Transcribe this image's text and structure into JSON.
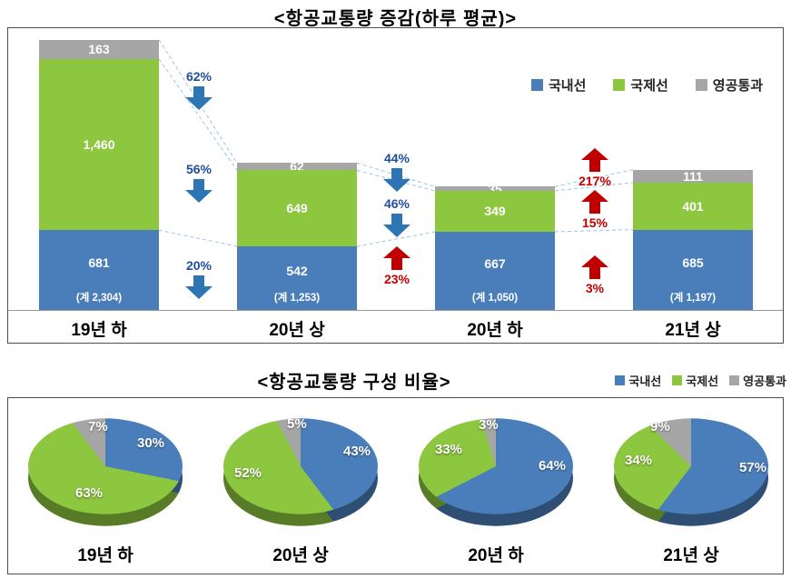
{
  "colors": {
    "domestic": "#4a7ebb",
    "international": "#8dc63f",
    "overflight": "#a6a6a6",
    "decrease_text": "#1f4e9e",
    "decrease_arrow": "#2e75b6",
    "increase": "#c00000",
    "trend_line": "#9dc3e6"
  },
  "chart_data": [
    {
      "type": "bar",
      "stacked": true,
      "title": "<항공교통량 증감(하루 평균)>",
      "categories": [
        "19년 하",
        "20년 상",
        "20년 하",
        "21년 상"
      ],
      "series": [
        {
          "name": "국내선",
          "key": "domestic",
          "values": [
            681,
            542,
            667,
            685
          ],
          "labels": [
            "681",
            "542",
            "667",
            "685"
          ]
        },
        {
          "name": "국제선",
          "key": "international",
          "values": [
            1460,
            649,
            349,
            401
          ],
          "labels": [
            "1,460",
            "649",
            "349",
            "401"
          ]
        },
        {
          "name": "영공통과",
          "key": "overflight",
          "values": [
            163,
            62,
            35,
            111
          ],
          "labels": [
            "163",
            "62",
            "35",
            "111"
          ]
        }
      ],
      "totals": [
        "(계 2,304)",
        "(계 1,253)",
        "(계 1,050)",
        "(계 1,197)"
      ],
      "legend": [
        {
          "label": "국내선",
          "key": "domestic"
        },
        {
          "label": "국제선",
          "key": "international"
        },
        {
          "label": "영공통과",
          "key": "overflight"
        }
      ],
      "legend_position": "top-right",
      "ylim": [
        0,
        2400
      ],
      "grid": false,
      "changes": [
        {
          "between": [
            "19년 하",
            "20년 상"
          ],
          "items": [
            {
              "series": "영공통과",
              "label": "62%",
              "direction": "down"
            },
            {
              "series": "국제선",
              "label": "56%",
              "direction": "down"
            },
            {
              "series": "국내선",
              "label": "20%",
              "direction": "down"
            }
          ]
        },
        {
          "between": [
            "20년 상",
            "20년 하"
          ],
          "items": [
            {
              "series": "영공통과",
              "label": "44%",
              "direction": "down"
            },
            {
              "series": "국제선",
              "label": "46%",
              "direction": "down"
            },
            {
              "series": "국내선",
              "label": "23%",
              "direction": "up"
            }
          ]
        },
        {
          "between": [
            "20년 하",
            "21년 상"
          ],
          "items": [
            {
              "series": "영공통과",
              "label": "217%",
              "direction": "up"
            },
            {
              "series": "국제선",
              "label": "15%",
              "direction": "up"
            },
            {
              "series": "국내선",
              "label": "3%",
              "direction": "up"
            }
          ]
        }
      ]
    },
    {
      "type": "pie",
      "title": "<항공교통량 구성 비율>",
      "legend": [
        {
          "label": "국내선",
          "key": "domestic"
        },
        {
          "label": "국제선",
          "key": "international"
        },
        {
          "label": "영공통과",
          "key": "overflight"
        }
      ],
      "legend_position": "top-right",
      "pies": [
        {
          "category": "19년 하",
          "slices": [
            {
              "name": "국내선",
              "key": "domestic",
              "pct": 30,
              "label": "30%",
              "label_pos": [
                120,
                33
              ]
            },
            {
              "name": "국제선",
              "key": "international",
              "pct": 63,
              "label": "63%",
              "label_pos": [
                52,
                88
              ]
            },
            {
              "name": "영공통과",
              "key": "overflight",
              "pct": 7,
              "label": "7%",
              "label_pos": [
                66,
                15
              ]
            }
          ]
        },
        {
          "category": "20년 상",
          "slices": [
            {
              "name": "국내선",
              "key": "domestic",
              "pct": 43,
              "label": "43%",
              "label_pos": [
                132,
                42
              ]
            },
            {
              "name": "국제선",
              "key": "international",
              "pct": 52,
              "label": "52%",
              "label_pos": [
                12,
                66
              ]
            },
            {
              "name": "영공통과",
              "key": "overflight",
              "pct": 5,
              "label": "5%",
              "label_pos": [
                70,
                12
              ]
            }
          ]
        },
        {
          "category": "20년 하",
          "slices": [
            {
              "name": "국내선",
              "key": "domestic",
              "pct": 64,
              "label": "64%",
              "label_pos": [
                132,
                58
              ]
            },
            {
              "name": "국제선",
              "key": "international",
              "pct": 33,
              "label": "33%",
              "label_pos": [
                18,
                40
              ]
            },
            {
              "name": "영공통과",
              "key": "overflight",
              "pct": 3,
              "label": "3%",
              "label_pos": [
                66,
                13
              ]
            }
          ]
        },
        {
          "category": "21년 상",
          "slices": [
            {
              "name": "국내선",
              "key": "domestic",
              "pct": 57,
              "label": "57%",
              "label_pos": [
                138,
                60
              ]
            },
            {
              "name": "국제선",
              "key": "international",
              "pct": 34,
              "label": "34%",
              "label_pos": [
                12,
                52
              ]
            },
            {
              "name": "영공통과",
              "key": "overflight",
              "pct": 9,
              "label": "9%",
              "label_pos": [
                40,
                15
              ]
            }
          ]
        }
      ]
    }
  ]
}
